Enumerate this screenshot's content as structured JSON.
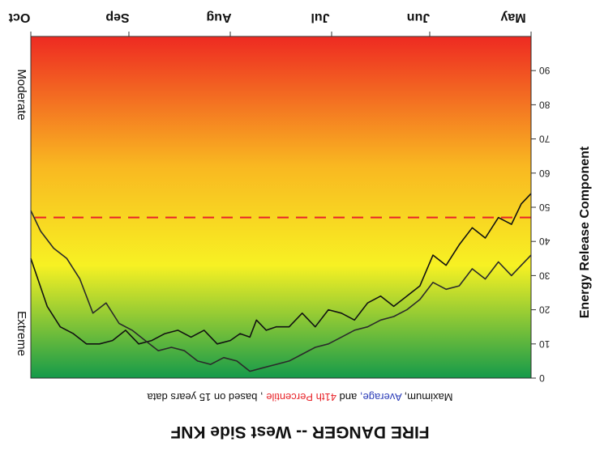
{
  "chart_data": {
    "type": "line",
    "orientation": "rotated 180 degrees",
    "title": "FIRE DANGER -- West Side KNF",
    "legend_text": {
      "maximum": "Maximum,",
      "average": "Average,",
      "and": "and",
      "percentile": "41th Percentile",
      "suffix": ", based on 15 years data"
    },
    "ylabel": "Energy Release Component",
    "left_labels": {
      "top": "Moderate",
      "bottom": "Extreme"
    },
    "x_ticks": [
      "May",
      "Jun",
      "Jul",
      "Aug",
      "Sep",
      "Oct"
    ],
    "x_range_days": [
      0,
      153
    ],
    "y_ticks": [
      0,
      10,
      20,
      30,
      40,
      50,
      60,
      70,
      80,
      90
    ],
    "ylim": [
      0,
      100
    ],
    "percentile_value": 47,
    "colors": {
      "gradient": [
        "#159a4a",
        "#f7f123",
        "#f9b821",
        "#ee2a22"
      ],
      "maximum": "#111111",
      "average": "#2a2a2a",
      "percentile": "#e8242a",
      "legend_blue": "#2c3db8",
      "legend_red": "#e8242a"
    },
    "series": [
      {
        "name": "Maximum",
        "x": [
          0,
          3,
          6,
          10,
          14,
          18,
          22,
          26,
          30,
          34,
          38,
          42,
          46,
          50,
          54,
          58,
          62,
          66,
          70,
          74,
          78,
          81,
          84,
          86,
          89,
          92,
          96,
          100,
          104,
          108,
          112,
          116,
          120,
          124,
          128,
          132,
          136,
          140,
          144,
          148,
          153
        ],
        "y": [
          54,
          51,
          45,
          47,
          41,
          44,
          39,
          33,
          36,
          27,
          24,
          21,
          24,
          22,
          17,
          19,
          20,
          15,
          19,
          15,
          15,
          14,
          17,
          12,
          13,
          11,
          10,
          14,
          12,
          14,
          13,
          11,
          10,
          14,
          11,
          10,
          10,
          13,
          15,
          21,
          35
        ]
      },
      {
        "name": "Average",
        "x": [
          0,
          3,
          6,
          10,
          14,
          18,
          22,
          26,
          30,
          34,
          38,
          42,
          46,
          50,
          54,
          58,
          62,
          66,
          70,
          74,
          78,
          82,
          86,
          90,
          94,
          98,
          102,
          106,
          110,
          114,
          118,
          122,
          126,
          130,
          134,
          138,
          142,
          146,
          150,
          153
        ],
        "y": [
          36,
          33,
          30,
          34,
          29,
          32,
          27,
          26,
          28,
          23,
          20,
          18,
          17,
          15,
          14,
          12,
          10,
          9,
          7,
          5,
          4,
          3,
          2,
          5,
          6,
          4,
          5,
          8,
          9,
          8,
          11,
          14,
          16,
          22,
          19,
          29,
          35,
          38,
          43,
          49
        ]
      }
    ]
  }
}
